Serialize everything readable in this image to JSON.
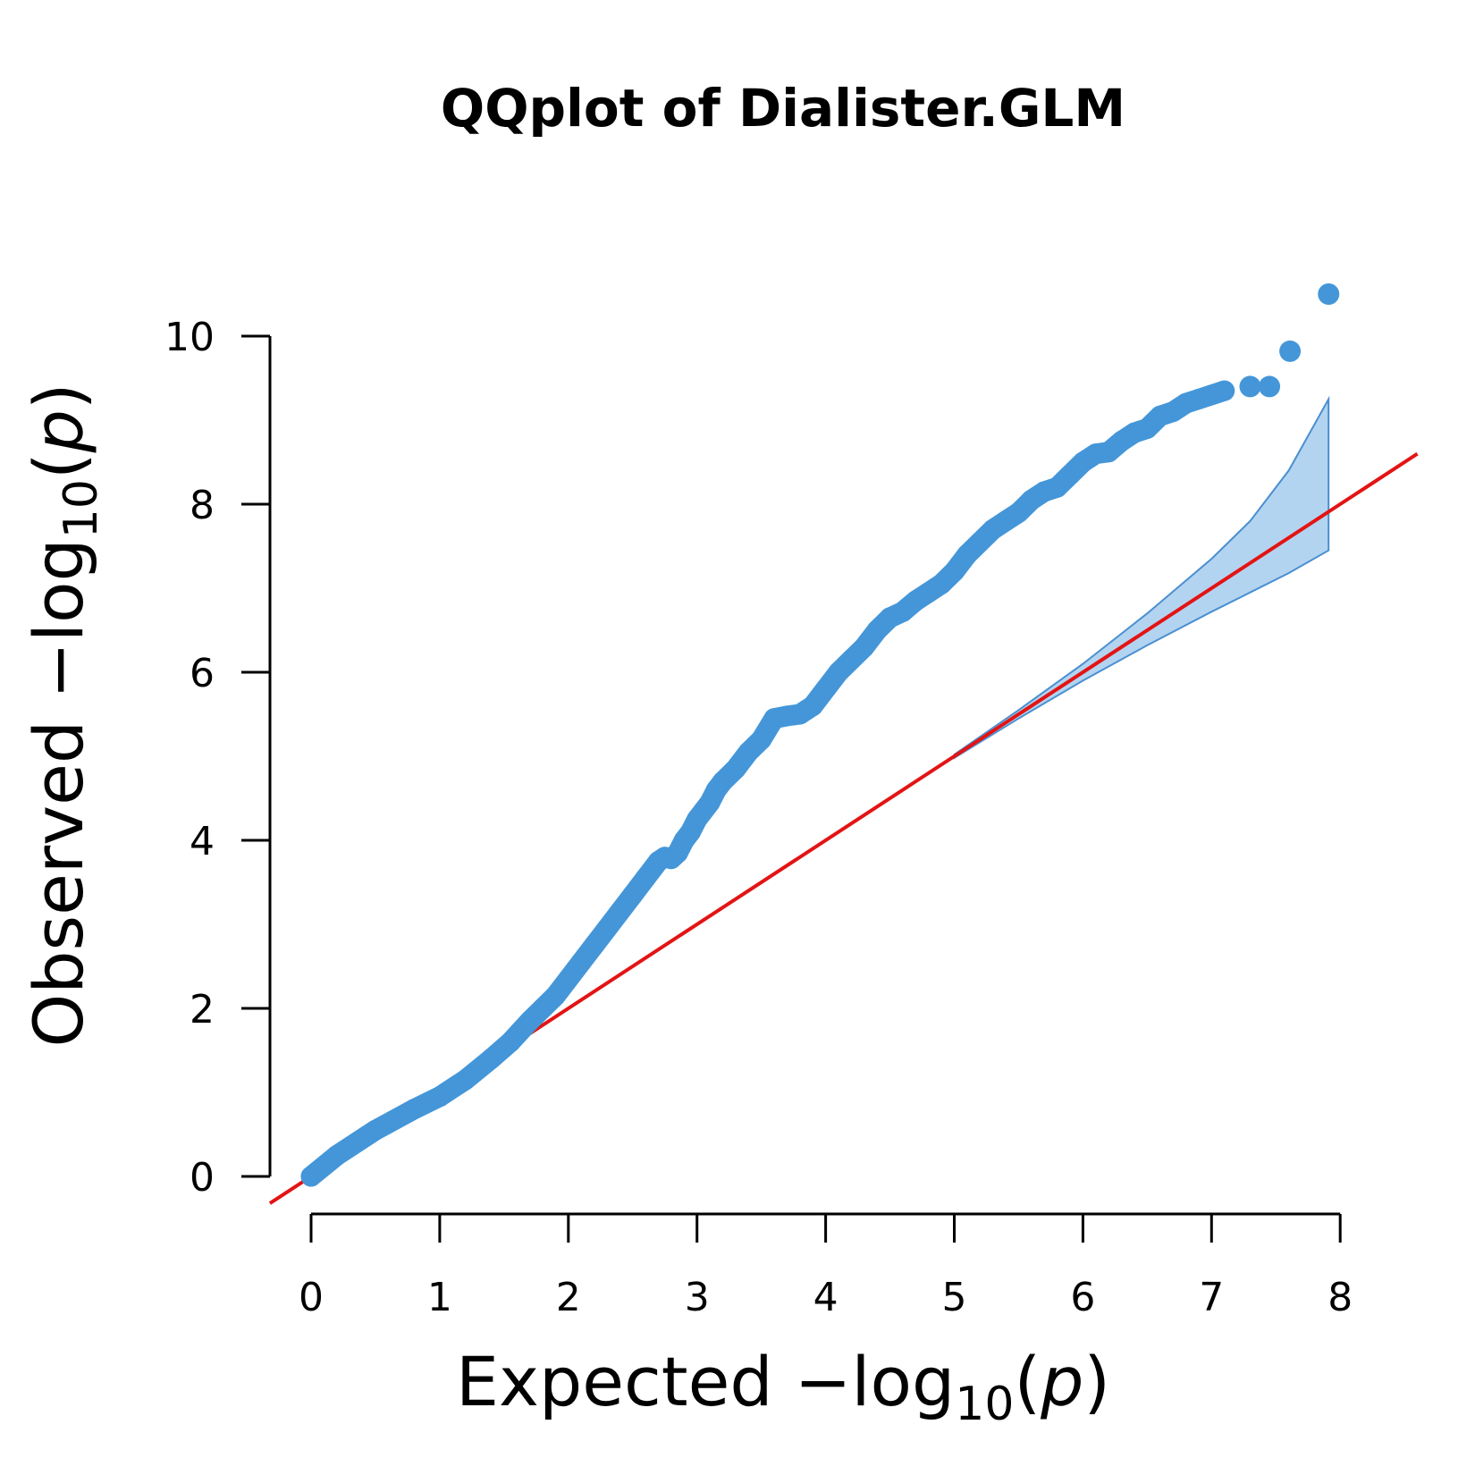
{
  "chart_data": {
    "type": "scatter",
    "title": "QQplot of Dialister.GLM",
    "xlabel": {
      "prefix": "Expected  ",
      "minus": "−",
      "log": "log",
      "base": "10",
      "open": "(",
      "var": "p",
      "close": ")"
    },
    "ylabel": {
      "prefix": "Observed  ",
      "minus": "−",
      "log": "log",
      "base": "10",
      "open": "(",
      "var": "p",
      "close": ")"
    },
    "xlim": [
      0,
      8
    ],
    "ylim": [
      0,
      10
    ],
    "x_ticks": [
      "0",
      "1",
      "2",
      "3",
      "4",
      "5",
      "6",
      "7",
      "8"
    ],
    "y_ticks": [
      "0",
      "2",
      "4",
      "6",
      "8",
      "10"
    ],
    "grid": false,
    "colors": {
      "points": "#4496d8",
      "reference_line": "#e31414",
      "ci_fill": "#b3d4f0",
      "ci_stroke": "#4a8fd0"
    },
    "reference_line": {
      "slope": 1,
      "intercept": 0
    },
    "observed_curve": {
      "x": [
        0.0,
        0.2,
        0.5,
        0.8,
        1.0,
        1.2,
        1.4,
        1.55,
        1.7,
        1.8,
        1.9,
        2.0,
        2.1,
        2.2,
        2.3,
        2.4,
        2.5,
        2.6,
        2.7,
        2.75,
        2.8,
        2.85,
        2.9,
        2.95,
        3.0,
        3.1,
        3.15,
        3.2,
        3.3,
        3.4,
        3.5,
        3.6,
        3.7,
        3.8,
        3.85,
        3.9,
        4.0,
        4.1,
        4.2,
        4.3,
        4.4,
        4.5,
        4.6,
        4.7,
        4.8,
        4.9,
        5.0,
        5.1,
        5.2,
        5.3,
        5.4,
        5.5,
        5.6,
        5.7,
        5.8,
        5.9,
        6.0,
        6.1,
        6.2,
        6.3,
        6.4,
        6.5,
        6.6,
        6.7,
        6.8,
        6.9,
        7.0,
        7.1
      ],
      "y": [
        0.0,
        0.25,
        0.55,
        0.8,
        0.95,
        1.15,
        1.4,
        1.6,
        1.85,
        2.0,
        2.15,
        2.35,
        2.55,
        2.75,
        2.95,
        3.15,
        3.35,
        3.55,
        3.75,
        3.8,
        3.78,
        3.85,
        4.0,
        4.1,
        4.25,
        4.45,
        4.6,
        4.7,
        4.85,
        5.05,
        5.2,
        5.45,
        5.48,
        5.5,
        5.55,
        5.6,
        5.8,
        6.0,
        6.15,
        6.3,
        6.5,
        6.65,
        6.72,
        6.85,
        6.95,
        7.05,
        7.2,
        7.4,
        7.55,
        7.7,
        7.8,
        7.9,
        8.05,
        8.15,
        8.2,
        8.35,
        8.5,
        8.6,
        8.62,
        8.75,
        8.85,
        8.9,
        9.05,
        9.1,
        9.2,
        9.25,
        9.3,
        9.35
      ]
    },
    "top_points": [
      {
        "x": 7.3,
        "y": 9.4
      },
      {
        "x": 7.45,
        "y": 9.4
      },
      {
        "x": 7.61,
        "y": 9.82
      },
      {
        "x": 7.91,
        "y": 10.5
      }
    ],
    "ci_band": {
      "x": [
        5.0,
        5.5,
        6.0,
        6.5,
        7.0,
        7.3,
        7.6,
        7.91
      ],
      "upper": [
        5.02,
        5.55,
        6.1,
        6.7,
        7.35,
        7.8,
        8.4,
        9.25
      ],
      "lower": [
        4.98,
        5.45,
        5.9,
        6.32,
        6.72,
        6.95,
        7.18,
        7.45
      ]
    }
  }
}
